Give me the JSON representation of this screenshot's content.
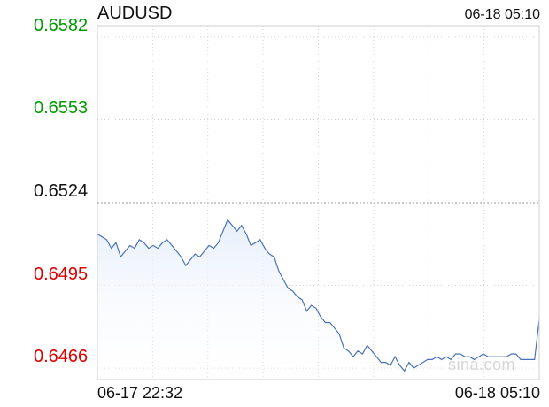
{
  "header": {
    "time": "06-18 05:10"
  },
  "watermark": "sina.com",
  "colors": {
    "up": "#009900",
    "down": "#dd0000",
    "neutral": "#111111",
    "line": "#4a72b8",
    "fill": "#e6eefb"
  },
  "chart_data": {
    "type": "area",
    "title": "AUDUSD",
    "xlabel": "",
    "ylabel": "",
    "prev_close": 0.6524,
    "y_ticks": [
      "0.6582",
      "0.6553",
      "0.6524",
      "0.6495",
      "0.6466"
    ],
    "ylim": [
      0.6462,
      0.6586
    ],
    "x_tick_labels": [
      "06-17 22:32",
      "06-18 05:10"
    ],
    "grid": true,
    "series": [
      {
        "values": [
          0.6513,
          0.6512,
          0.6511,
          0.6508,
          0.651,
          0.6505,
          0.6507,
          0.6509,
          0.6508,
          0.6511,
          0.651,
          0.6508,
          0.6509,
          0.6508,
          0.651,
          0.6511,
          0.6509,
          0.6507,
          0.6505,
          0.6502,
          0.6504,
          0.6506,
          0.6505,
          0.6507,
          0.6509,
          0.6508,
          0.651,
          0.6514,
          0.6518,
          0.6516,
          0.6514,
          0.6516,
          0.6513,
          0.6509,
          0.651,
          0.6511,
          0.6508,
          0.6506,
          0.6505,
          0.65,
          0.6497,
          0.6494,
          0.6493,
          0.6491,
          0.649,
          0.6486,
          0.6488,
          0.6487,
          0.6484,
          0.6482,
          0.6482,
          0.648,
          0.6478,
          0.6473,
          0.6472,
          0.647,
          0.6472,
          0.6471,
          0.6474,
          0.6472,
          0.647,
          0.6468,
          0.6468,
          0.6467,
          0.647,
          0.6467,
          0.6465,
          0.6468,
          0.6466,
          0.6467,
          0.6468,
          0.6469,
          0.6469,
          0.647,
          0.6469,
          0.647,
          0.6469,
          0.6471,
          0.6471,
          0.647,
          0.647,
          0.6469,
          0.647,
          0.6471,
          0.647,
          0.647,
          0.647,
          0.647,
          0.647,
          0.6471,
          0.6471,
          0.6469,
          0.6469,
          0.6469,
          0.6469,
          0.6483
        ]
      }
    ]
  }
}
